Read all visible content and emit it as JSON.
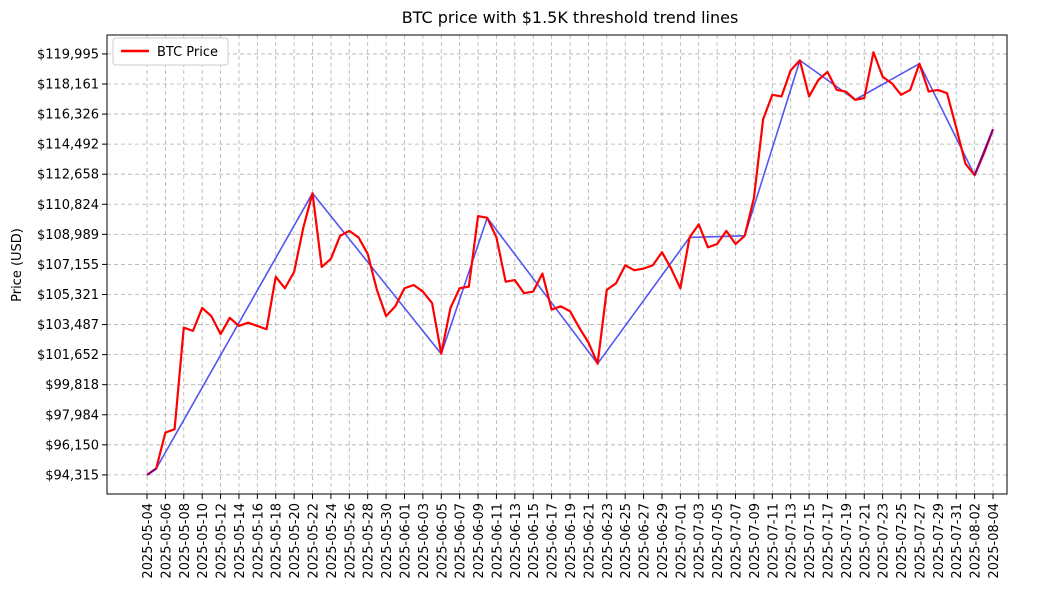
{
  "chart_data": {
    "type": "line",
    "title": "BTC price with $1.5K threshold trend lines",
    "xlabel": "",
    "ylabel": "Price (USD)",
    "grid": true,
    "legend_position": "top-left",
    "x_tick_labels": [
      "2025-05-04",
      "2025-05-06",
      "2025-05-08",
      "2025-05-10",
      "2025-05-12",
      "2025-05-14",
      "2025-05-16",
      "2025-05-18",
      "2025-05-20",
      "2025-05-22",
      "2025-05-24",
      "2025-05-26",
      "2025-05-28",
      "2025-05-30",
      "2025-06-01",
      "2025-06-03",
      "2025-06-05",
      "2025-06-07",
      "2025-06-09",
      "2025-06-11",
      "2025-06-13",
      "2025-06-15",
      "2025-06-17",
      "2025-06-19",
      "2025-06-21",
      "2025-06-23",
      "2025-06-25",
      "2025-06-27",
      "2025-06-29",
      "2025-07-01",
      "2025-07-03",
      "2025-07-05",
      "2025-07-07",
      "2025-07-09",
      "2025-07-11",
      "2025-07-13",
      "2025-07-15",
      "2025-07-17",
      "2025-07-19",
      "2025-07-21",
      "2025-07-23",
      "2025-07-25",
      "2025-07-27",
      "2025-07-29",
      "2025-07-31",
      "2025-08-02",
      "2025-08-04"
    ],
    "y_tick_labels": [
      "$94,315",
      "$96,150",
      "$97,984",
      "$99,818",
      "$101,652",
      "$103,487",
      "$105,321",
      "$107,155",
      "$108,989",
      "$110,824",
      "$112,658",
      "$114,492",
      "$116,326",
      "$118,161",
      "$119,995"
    ],
    "y_tick_values": [
      94315,
      96150,
      97984,
      99818,
      101652,
      103487,
      105321,
      107155,
      108989,
      110824,
      112658,
      114492,
      116326,
      118161,
      119995
    ],
    "ylim": [
      93150,
      121150
    ],
    "series": [
      {
        "name": "BTC Price",
        "color": "#ff0000",
        "x_start": "2025-05-04",
        "values": [
          94315,
          94700,
          96900,
          97100,
          103300,
          103100,
          104500,
          104000,
          102900,
          103900,
          103400,
          103600,
          103400,
          103200,
          106400,
          105700,
          106700,
          109400,
          111500,
          107000,
          107500,
          108900,
          109200,
          108800,
          107800,
          105600,
          104000,
          104600,
          105700,
          105900,
          105500,
          104800,
          101700,
          104500,
          105700,
          105800,
          110100,
          110000,
          108800,
          106100,
          106200,
          105400,
          105500,
          106600,
          104400,
          104600,
          104300,
          103300,
          102400,
          101100,
          105600,
          106000,
          107100,
          106800,
          106900,
          107100,
          107900,
          106900,
          105700,
          108800,
          109600,
          108200,
          108400,
          109200,
          108400,
          108900,
          111200,
          116000,
          117500,
          117400,
          119000,
          119600,
          117400,
          118400,
          118900,
          117800,
          117700,
          117200,
          117300,
          120100,
          118600,
          118200,
          117500,
          117800,
          119400,
          117700,
          117800,
          117600,
          115500,
          113300,
          112600,
          113900,
          115400
        ]
      }
    ],
    "trend_lines": {
      "color": "#4b4bf0",
      "segments": [
        {
          "from": "2025-05-04",
          "to": "2025-05-05",
          "color": "#800080"
        },
        {
          "from": "2025-05-05",
          "to": "2025-05-22"
        },
        {
          "from": "2025-05-22",
          "to": "2025-06-05"
        },
        {
          "from": "2025-06-05",
          "to": "2025-06-10"
        },
        {
          "from": "2025-06-10",
          "to": "2025-06-22"
        },
        {
          "from": "2025-06-22",
          "to": "2025-07-02"
        },
        {
          "from": "2025-07-02",
          "to": "2025-07-08"
        },
        {
          "from": "2025-07-08",
          "to": "2025-07-14"
        },
        {
          "from": "2025-07-14",
          "to": "2025-07-20"
        },
        {
          "from": "2025-07-20",
          "to": "2025-07-27"
        },
        {
          "from": "2025-07-27",
          "to": "2025-08-02"
        },
        {
          "from": "2025-08-02",
          "to": "2025-08-04",
          "color": "#800080"
        }
      ]
    }
  }
}
